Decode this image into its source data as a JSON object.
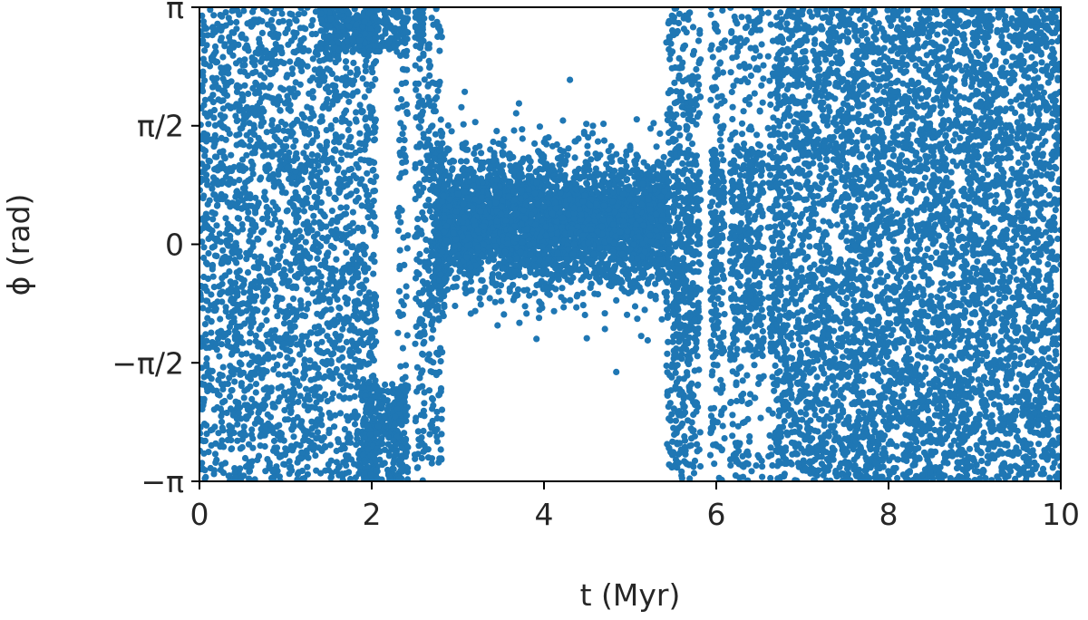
{
  "chart_data": {
    "type": "scatter",
    "title": "",
    "xlabel": "t (Myr)",
    "ylabel": "ϕ (rad)",
    "xlim": [
      0,
      10
    ],
    "ylim": [
      -3.14159,
      3.14159
    ],
    "x_ticks": [
      {
        "value": 0,
        "label": "0"
      },
      {
        "value": 2,
        "label": "2"
      },
      {
        "value": 4,
        "label": "4"
      },
      {
        "value": 6,
        "label": "6"
      },
      {
        "value": 8,
        "label": "8"
      },
      {
        "value": 10,
        "label": "10"
      }
    ],
    "y_ticks": [
      {
        "value": -3.14159,
        "label": "−π"
      },
      {
        "value": -1.5708,
        "label": "−π/2"
      },
      {
        "value": 0,
        "label": "0"
      },
      {
        "value": 1.5708,
        "label": "π/2"
      },
      {
        "value": 3.14159,
        "label": "π"
      }
    ],
    "grid": false,
    "legend": "none",
    "color": "#1f77b4",
    "points": [
      [
        0.05,
        2.9
      ],
      [
        0.08,
        -2.4
      ],
      [
        0.12,
        1.1
      ],
      [
        0.15,
        -0.3
      ],
      [
        0.2,
        2.2
      ],
      [
        0.22,
        -1.8
      ],
      [
        0.27,
        0.6
      ],
      [
        0.3,
        -2.9
      ],
      [
        0.34,
        3.0
      ],
      [
        0.38,
        -0.9
      ],
      [
        0.42,
        1.7
      ],
      [
        0.45,
        -2.1
      ],
      [
        0.5,
        0.2
      ],
      [
        0.53,
        2.6
      ],
      [
        0.58,
        -1.3
      ],
      [
        0.62,
        -2.7
      ],
      [
        0.66,
        1.3
      ],
      [
        0.7,
        -0.5
      ],
      [
        0.73,
        2.8
      ],
      [
        0.78,
        -1.9
      ],
      [
        0.82,
        0.9
      ],
      [
        0.86,
        -2.5
      ],
      [
        0.9,
        1.9
      ],
      [
        0.94,
        -0.1
      ],
      [
        0.98,
        2.4
      ],
      [
        1.02,
        -1.5
      ],
      [
        1.06,
        -2.95
      ],
      [
        1.1,
        0.4
      ],
      [
        1.14,
        2.0
      ],
      [
        1.18,
        -0.8
      ],
      [
        1.22,
        1.5
      ],
      [
        1.26,
        -2.2
      ],
      [
        1.3,
        2.9
      ],
      [
        1.34,
        -1.1
      ],
      [
        1.38,
        0.0
      ],
      [
        1.42,
        -2.6
      ],
      [
        1.46,
        1.2
      ],
      [
        1.5,
        2.5
      ],
      [
        1.54,
        -0.6
      ],
      [
        1.58,
        -1.7
      ],
      [
        1.62,
        0.7
      ],
      [
        1.66,
        2.2
      ],
      [
        1.7,
        -2.8
      ],
      [
        1.74,
        1.6
      ],
      [
        1.78,
        -0.2
      ],
      [
        1.82,
        -2.3
      ],
      [
        1.86,
        2.7
      ],
      [
        1.9,
        -1.2
      ],
      [
        1.94,
        0.5
      ],
      [
        1.98,
        1.8
      ],
      [
        2.05,
        -2.5
      ],
      [
        2.1,
        2.95
      ],
      [
        2.15,
        -2.9
      ],
      [
        2.2,
        2.7
      ],
      [
        2.25,
        -2.6
      ],
      [
        2.3,
        2.85
      ],
      [
        2.35,
        -2.7
      ],
      [
        2.4,
        2.5
      ],
      [
        2.45,
        -2.2
      ],
      [
        2.5,
        2.3
      ],
      [
        2.55,
        -1.9
      ],
      [
        2.6,
        1.0
      ],
      [
        2.62,
        -0.8
      ],
      [
        2.65,
        2.6
      ],
      [
        2.7,
        -2.4
      ],
      [
        2.75,
        0.3
      ],
      [
        2.8,
        -0.4
      ],
      [
        2.85,
        1.2
      ],
      [
        2.9,
        0.5
      ],
      [
        2.95,
        -0.2
      ],
      [
        3.0,
        0.8
      ],
      [
        3.05,
        0.1
      ],
      [
        3.1,
        1.1
      ],
      [
        3.15,
        -0.3
      ],
      [
        3.2,
        0.6
      ],
      [
        3.25,
        1.3
      ],
      [
        3.3,
        0.0
      ],
      [
        3.35,
        0.9
      ],
      [
        3.4,
        -0.5
      ],
      [
        3.45,
        1.5
      ],
      [
        3.5,
        0.4
      ],
      [
        3.55,
        -0.1
      ],
      [
        3.6,
        1.2
      ],
      [
        3.65,
        0.7
      ],
      [
        3.7,
        -0.6
      ],
      [
        3.75,
        1.4
      ],
      [
        3.8,
        0.2
      ],
      [
        3.85,
        0.9
      ],
      [
        3.9,
        -0.4
      ],
      [
        3.95,
        1.0
      ],
      [
        4.0,
        0.5
      ],
      [
        4.05,
        -0.2
      ],
      [
        4.1,
        1.3
      ],
      [
        4.15,
        0.3
      ],
      [
        4.2,
        -0.7
      ],
      [
        4.25,
        1.1
      ],
      [
        4.3,
        0.6
      ],
      [
        4.35,
        0.0
      ],
      [
        4.4,
        1.4
      ],
      [
        4.45,
        -0.3
      ],
      [
        4.5,
        0.8
      ],
      [
        4.55,
        0.2
      ],
      [
        4.6,
        1.2
      ],
      [
        4.65,
        -0.5
      ],
      [
        4.7,
        0.7
      ],
      [
        4.75,
        1.0
      ],
      [
        4.8,
        -0.1
      ],
      [
        4.85,
        0.5
      ],
      [
        4.9,
        0.9
      ],
      [
        4.95,
        -0.4
      ],
      [
        5.0,
        0.6
      ],
      [
        5.05,
        1.1
      ],
      [
        5.1,
        0.1
      ],
      [
        5.15,
        0.8
      ],
      [
        5.2,
        -0.3
      ],
      [
        5.25,
        0.9
      ],
      [
        5.3,
        0.4
      ],
      [
        5.35,
        -0.2
      ],
      [
        5.4,
        0.7
      ],
      [
        5.45,
        -2.7
      ],
      [
        5.5,
        2.8
      ],
      [
        5.55,
        -1.6
      ],
      [
        5.6,
        1.9
      ],
      [
        5.65,
        -2.9
      ],
      [
        5.7,
        0.3
      ],
      [
        5.75,
        -1.0
      ],
      [
        5.8,
        2.4
      ],
      [
        5.85,
        -2.3
      ],
      [
        5.9,
        1.4
      ],
      [
        5.95,
        -0.5
      ],
      [
        6.0,
        2.9
      ],
      [
        6.05,
        -1.8
      ],
      [
        6.1,
        0.8
      ],
      [
        6.15,
        -2.6
      ],
      [
        6.2,
        2.1
      ],
      [
        6.25,
        -0.9
      ],
      [
        6.3,
        1.6
      ],
      [
        6.35,
        -2.9
      ],
      [
        6.4,
        2.6
      ],
      [
        6.45,
        -1.4
      ],
      [
        6.5,
        0.2
      ],
      [
        6.55,
        -2.2
      ],
      [
        6.6,
        2.95
      ],
      [
        6.65,
        -0.7
      ],
      [
        6.7,
        1.8
      ],
      [
        6.75,
        -2.5
      ],
      [
        6.8,
        0.6
      ],
      [
        6.85,
        2.3
      ],
      [
        6.9,
        -1.6
      ],
      [
        6.95,
        -2.9
      ],
      [
        7.0,
        1.2
      ],
      [
        7.05,
        2.7
      ],
      [
        7.1,
        -0.4
      ],
      [
        7.15,
        -2.0
      ],
      [
        7.2,
        0.9
      ],
      [
        7.25,
        2.1
      ],
      [
        7.3,
        -1.2
      ],
      [
        7.35,
        -2.7
      ],
      [
        7.4,
        1.5
      ],
      [
        7.45,
        0.1
      ],
      [
        7.5,
        2.9
      ],
      [
        7.55,
        -1.7
      ],
      [
        7.6,
        0.5
      ],
      [
        7.65,
        -2.4
      ],
      [
        7.7,
        2.3
      ],
      [
        7.75,
        -0.8
      ],
      [
        7.8,
        1.7
      ],
      [
        7.85,
        -2.9
      ],
      [
        7.9,
        0.3
      ],
      [
        7.95,
        2.6
      ],
      [
        8.0,
        -1.3
      ],
      [
        8.05,
        -2.2
      ],
      [
        8.1,
        1.0
      ],
      [
        8.15,
        2.4
      ],
      [
        8.2,
        -0.6
      ],
      [
        8.25,
        -2.8
      ],
      [
        8.3,
        1.9
      ],
      [
        8.35,
        0.0
      ],
      [
        8.4,
        2.8
      ],
      [
        8.45,
        -1.5
      ],
      [
        8.5,
        0.7
      ],
      [
        8.55,
        -2.6
      ],
      [
        8.6,
        2.2
      ],
      [
        8.65,
        -0.9
      ],
      [
        8.7,
        1.3
      ],
      [
        8.75,
        -2.0
      ],
      [
        8.8,
        2.95
      ],
      [
        8.85,
        -0.3
      ],
      [
        8.9,
        1.6
      ],
      [
        8.95,
        -2.5
      ],
      [
        9.0,
        0.4
      ],
      [
        9.05,
        2.5
      ],
      [
        9.1,
        -1.8
      ],
      [
        9.15,
        -2.9
      ],
      [
        9.2,
        1.1
      ],
      [
        9.25,
        2.0
      ],
      [
        9.3,
        -0.5
      ],
      [
        9.35,
        -2.3
      ],
      [
        9.4,
        0.8
      ],
      [
        9.45,
        2.7
      ],
      [
        9.5,
        -1.1
      ],
      [
        9.55,
        1.5
      ],
      [
        9.6,
        -2.7
      ],
      [
        9.65,
        0.2
      ],
      [
        9.7,
        2.3
      ],
      [
        9.75,
        -1.6
      ],
      [
        9.8,
        1.0
      ],
      [
        9.85,
        -2.4
      ],
      [
        9.9,
        2.8
      ],
      [
        9.95,
        -0.2
      ]
    ],
    "cloud_regions": [
      {
        "x": [
          0.0,
          2.05
        ],
        "y": [
          -3.14159,
          3.14159
        ],
        "count": 2400,
        "distribution": "uniform"
      },
      {
        "x": [
          1.4,
          2.6
        ],
        "y": [
          2.55,
          3.14159
        ],
        "count": 350,
        "distribution": "uniform"
      },
      {
        "x": [
          1.9,
          2.45
        ],
        "y": [
          -3.14159,
          -1.85
        ],
        "count": 350,
        "distribution": "uniform"
      },
      {
        "x": [
          2.28,
          2.42
        ],
        "y": [
          -3.14159,
          3.14159
        ],
        "count": 90,
        "distribution": "uniform"
      },
      {
        "x": [
          2.5,
          2.62
        ],
        "y": [
          -3.14159,
          3.14159
        ],
        "count": 120,
        "distribution": "uniform"
      },
      {
        "x": [
          2.65,
          2.82
        ],
        "y": [
          -3.14159,
          3.14159
        ],
        "count": 140,
        "distribution": "uniform"
      },
      {
        "x": [
          2.6,
          2.85
        ],
        "y": [
          -1.0,
          1.5
        ],
        "count": 120,
        "distribution": "uniform"
      },
      {
        "x": [
          2.75,
          5.45
        ],
        "y": [
          0.3,
          0.55
        ],
        "count": 3600,
        "distribution": "gaussian"
      },
      {
        "x": [
          5.42,
          5.75
        ],
        "y": [
          -3.14159,
          3.14159
        ],
        "count": 380,
        "distribution": "uniform"
      },
      {
        "x": [
          5.5,
          6.7
        ],
        "y": [
          -1.5,
          1.3
        ],
        "count": 650,
        "distribution": "uniform"
      },
      {
        "x": [
          5.75,
          6.75
        ],
        "y": [
          -3.14159,
          3.14159
        ],
        "count": 800,
        "distribution": "uniform"
      },
      {
        "x": [
          6.7,
          10.0
        ],
        "y": [
          -3.14159,
          3.14159
        ],
        "count": 5200,
        "distribution": "uniform"
      }
    ],
    "cloud_gaps": [
      {
        "x": [
          2.42,
          2.5
        ],
        "y": [
          -3.14159,
          3.14159
        ]
      },
      {
        "x": [
          2.1,
          2.3
        ],
        "y": [
          -1.6,
          1.9
        ]
      },
      {
        "x": [
          5.82,
          5.93
        ],
        "y": [
          -3.14159,
          3.14159
        ]
      },
      {
        "x": [
          6.1,
          6.16
        ],
        "y": [
          -3.14159,
          3.14159
        ]
      },
      {
        "x": [
          6.55,
          6.6
        ],
        "y": [
          -3.14159,
          3.14159
        ]
      }
    ]
  }
}
